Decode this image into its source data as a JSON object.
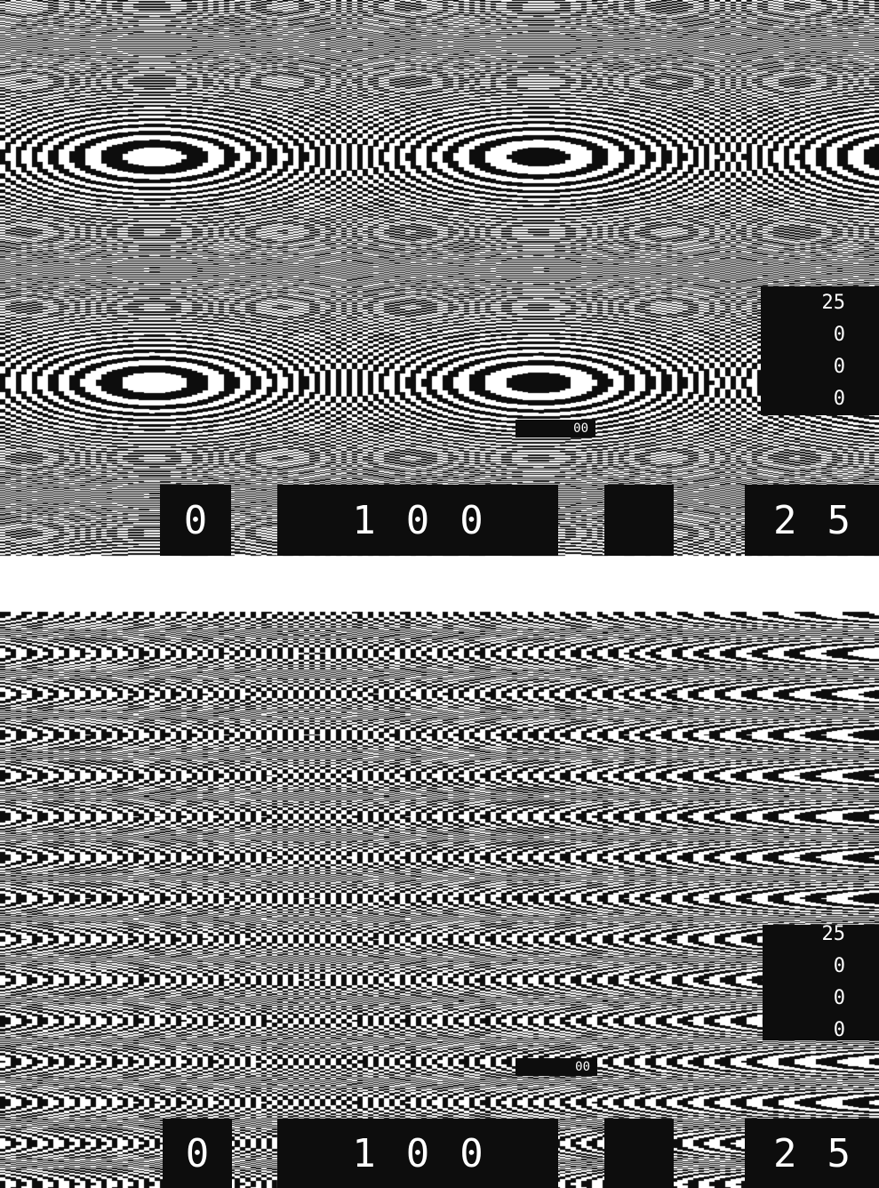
{
  "colors": {
    "ink": "#0d0d0d",
    "paper": "#ffffff"
  },
  "top_panel": {
    "side_scale": [
      "25",
      "0",
      "0",
      "0"
    ],
    "bottom_labels": {
      "zero": "0",
      "hundred": "100",
      "blank": "",
      "twentyfive": "25"
    },
    "small_tag": "00"
  },
  "bottom_panel": {
    "side_scale": [
      "25",
      "0",
      "0",
      "0"
    ],
    "bottom_labels": {
      "zero": "0",
      "hundred": "100",
      "blank": "",
      "twentyfive": "25"
    },
    "small_tag": "00"
  }
}
